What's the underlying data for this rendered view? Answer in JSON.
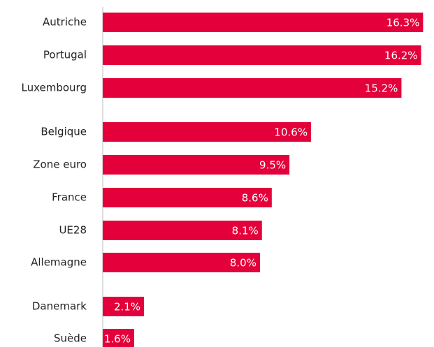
{
  "chart_data": {
    "type": "hbar",
    "categories": [
      "Autriche",
      "Portugal",
      "Luxembourg",
      "Belgique",
      "Zone euro",
      "France",
      "UE28",
      "Allemagne",
      "Danemark",
      "Suède"
    ],
    "values": [
      16.3,
      16.2,
      15.2,
      10.6,
      9.5,
      8.6,
      8.1,
      8.0,
      2.1,
      1.6
    ],
    "value_labels": [
      "16.3%",
      "16.2%",
      "15.2%",
      "10.6%",
      "9.5%",
      "8.6%",
      "8.1%",
      "8.0%",
      "2.1%",
      "1.6%"
    ],
    "color": "#e4003a",
    "xlim": [
      0,
      16.5
    ]
  }
}
